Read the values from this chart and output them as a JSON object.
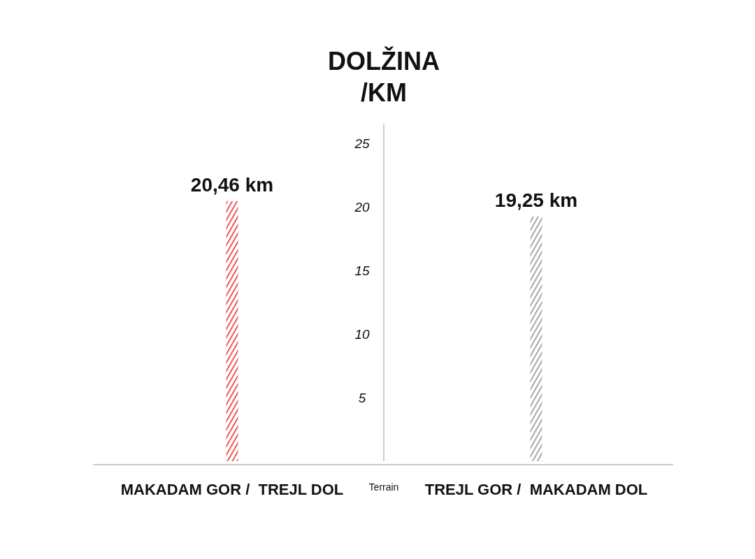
{
  "chart_data": {
    "type": "bar",
    "title": "DOLŽINA\n/KM",
    "xlabel": "Terrain",
    "categories": [
      "MAKADAM GOR /  TREJL DOL",
      "TREJL GOR /  MAKADAM DOL"
    ],
    "values": [
      20.46,
      19.25
    ],
    "colors": [
      "#e8231f",
      "#8c8c8c"
    ],
    "value_labels": [
      "20,46 km",
      "19,25 km"
    ],
    "ylim": [
      0,
      26.5
    ],
    "yticks": [
      5,
      10,
      15,
      20,
      25
    ],
    "grid": false
  }
}
